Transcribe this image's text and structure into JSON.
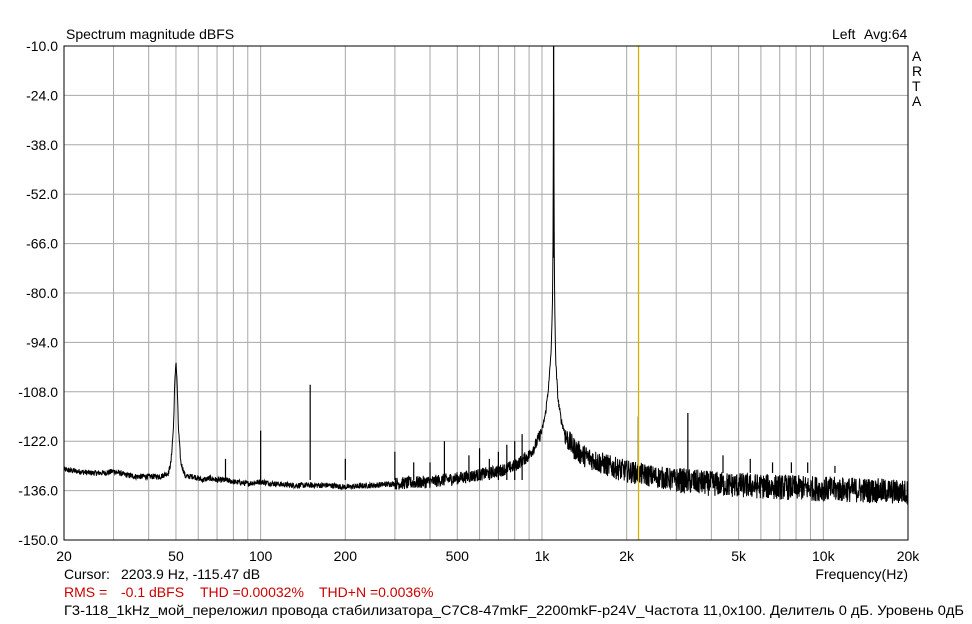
{
  "chart_data": {
    "type": "line",
    "title": "Spectrum magnitude dBFS",
    "channel": "Left",
    "averaging": "Avg:64",
    "brand": "ARTA",
    "xlabel": "Frequency(Hz)",
    "ylabel": "",
    "x_scale": "log",
    "xlim": [
      20,
      20000
    ],
    "ylim": [
      -150,
      -10
    ],
    "x_ticks": [
      {
        "v": 20,
        "label": "20"
      },
      {
        "v": 50,
        "label": "50"
      },
      {
        "v": 100,
        "label": "100"
      },
      {
        "v": 200,
        "label": "200"
      },
      {
        "v": 500,
        "label": "500"
      },
      {
        "v": 1000,
        "label": "1k"
      },
      {
        "v": 2000,
        "label": "2k"
      },
      {
        "v": 5000,
        "label": "5k"
      },
      {
        "v": 10000,
        "label": "10k"
      },
      {
        "v": 20000,
        "label": "20k"
      }
    ],
    "y_ticks": [
      {
        "v": -10,
        "label": "-10.0"
      },
      {
        "v": -24,
        "label": "-24.0"
      },
      {
        "v": -38,
        "label": "-38.0"
      },
      {
        "v": -52,
        "label": "-52.0"
      },
      {
        "v": -66,
        "label": "-66.0"
      },
      {
        "v": -80,
        "label": "-80.0"
      },
      {
        "v": -94,
        "label": "-94.0"
      },
      {
        "v": -108,
        "label": "-108.0"
      },
      {
        "v": -122,
        "label": "-122.0"
      },
      {
        "v": -136,
        "label": "-136.0"
      },
      {
        "v": -150,
        "label": "-150.0"
      }
    ],
    "grid": true,
    "cursor": {
      "x": 2203.9,
      "y": -115.47,
      "color": "#d4b000"
    },
    "series": [
      {
        "color": "#000000",
        "x": [
          20,
          22,
          25,
          28,
          30,
          33,
          36,
          40,
          44,
          47,
          48,
          49,
          49.5,
          50,
          50.5,
          51,
          52,
          54,
          58,
          62,
          66,
          70,
          75,
          80,
          90,
          100,
          110,
          130,
          150,
          175,
          200,
          250,
          300,
          400,
          500,
          600,
          700,
          800,
          900,
          950,
          1000,
          1030,
          1060,
          1080,
          1090,
          1095,
          1100,
          1105,
          1110,
          1120,
          1140,
          1170,
          1220,
          1300,
          1400,
          1600,
          1800,
          2000,
          2500,
          3000,
          4000,
          5000,
          7000,
          10000,
          15000,
          20000
        ],
        "y": [
          -130,
          -130.5,
          -131,
          -131,
          -130.5,
          -131.5,
          -132,
          -132,
          -132,
          -131,
          -128,
          -118,
          -106,
          -99,
          -106,
          -118,
          -128,
          -132,
          -132,
          -133,
          -132.5,
          -133,
          -133,
          -133.5,
          -134,
          -133.5,
          -134,
          -134.5,
          -134.5,
          -134.5,
          -135,
          -134.5,
          -134,
          -133.5,
          -132.5,
          -131.5,
          -130.5,
          -129,
          -126,
          -123,
          -119,
          -114,
          -105,
          -95,
          -82,
          -64,
          -10,
          -64,
          -84,
          -100,
          -110,
          -116,
          -121,
          -124,
          -126,
          -128,
          -129.5,
          -130.5,
          -132,
          -133,
          -134,
          -134.5,
          -135,
          -135.5,
          -136,
          -136.5
        ]
      }
    ],
    "spikes": [
      {
        "x": 75,
        "y": -127
      },
      {
        "x": 100,
        "y": -119
      },
      {
        "x": 150,
        "y": -106
      },
      {
        "x": 200,
        "y": -127
      },
      {
        "x": 300,
        "y": -125
      },
      {
        "x": 350,
        "y": -128
      },
      {
        "x": 400,
        "y": -128
      },
      {
        "x": 450,
        "y": -122
      },
      {
        "x": 550,
        "y": -126
      },
      {
        "x": 600,
        "y": -124
      },
      {
        "x": 650,
        "y": -127
      },
      {
        "x": 700,
        "y": -125
      },
      {
        "x": 750,
        "y": -123
      },
      {
        "x": 800,
        "y": -122
      },
      {
        "x": 850,
        "y": -120
      },
      {
        "x": 2200,
        "y": -115
      },
      {
        "x": 3300,
        "y": -114
      },
      {
        "x": 4400,
        "y": -126
      },
      {
        "x": 5500,
        "y": -127
      },
      {
        "x": 6600,
        "y": -128
      },
      {
        "x": 7700,
        "y": -128
      },
      {
        "x": 8800,
        "y": -128
      },
      {
        "x": 11000,
        "y": -129
      }
    ]
  },
  "footer": {
    "cursor_label": "Cursor:",
    "cursor_value": "2203.9 Hz, -115.47 dB",
    "rms_label": "RMS =",
    "rms_value": "-0.1 dBFS",
    "thd_label": "THD =0.00032%",
    "thdn_label": "THD+N =0.0036%",
    "description": "Г3-118_1kHz_мой_переложил провода стабилизатора_C7C8-47mkF_2200mkF-p24V_Частота 11,0x100. Делитель 0 дБ. Уровень 0дБ"
  }
}
